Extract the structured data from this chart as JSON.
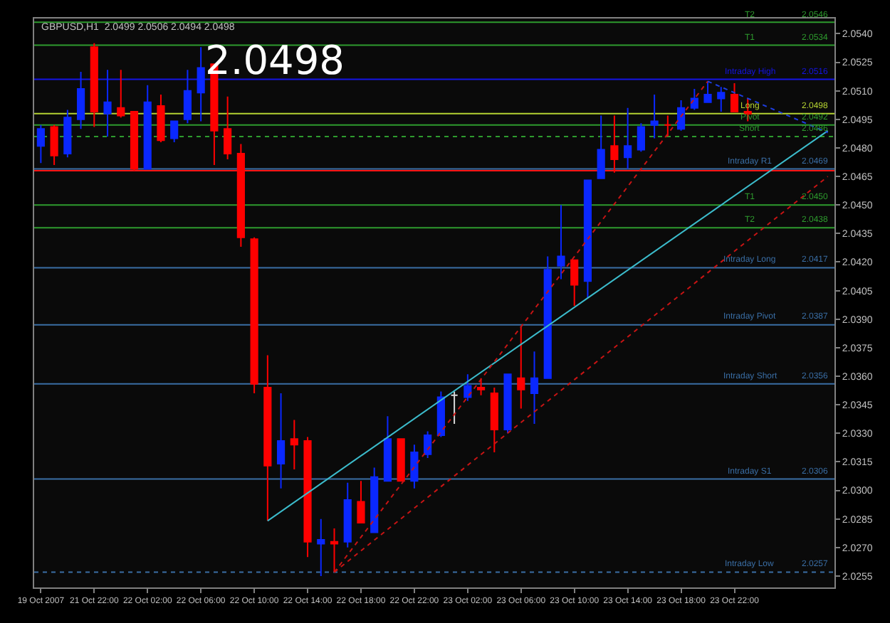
{
  "chart_data": {
    "type": "candlestick",
    "title": "GBPUSD,H1  2.0499 2.0506 2.0494 2.0498",
    "annotations": [
      "2.0498"
    ],
    "categories": [
      "19 Oct 2007",
      null,
      null,
      null,
      "21 Oct 22:00",
      null,
      null,
      null,
      "22 Oct 02:00",
      null,
      null,
      null,
      "22 Oct 06:00",
      null,
      null,
      null,
      "22 Oct 10:00",
      null,
      null,
      null,
      "22 Oct 14:00",
      null,
      null,
      null,
      "22 Oct 18:00",
      null,
      null,
      null,
      "22 Oct 22:00",
      null,
      null,
      null,
      "23 Oct 02:00",
      null,
      null,
      null,
      "23 Oct 06:00",
      null,
      null,
      null,
      "23 Oct 10:00",
      null,
      null,
      null,
      "23 Oct 14:00",
      null,
      null,
      null,
      "23 Oct 18:00",
      null,
      null,
      null,
      "23 Oct 22:00",
      null,
      null,
      null,
      null,
      null,
      null,
      null
    ],
    "ohlc": [
      [
        2.0481,
        2.0492,
        2.0472,
        2.049
      ],
      [
        2.0491,
        2.0492,
        2.0471,
        2.0476
      ],
      [
        2.0477,
        2.05,
        2.0475,
        2.0496
      ],
      [
        2.0495,
        2.052,
        2.049,
        2.0511
      ],
      [
        2.0533,
        2.0535,
        2.0491,
        2.0499
      ],
      [
        2.0498,
        2.0521,
        2.0486,
        2.0504
      ],
      [
        2.0501,
        2.0521,
        2.0496,
        2.0497
      ],
      [
        2.0499,
        2.0499,
        2.0468,
        2.0469
      ],
      [
        2.0469,
        2.0513,
        2.0469,
        2.0504
      ],
      [
        2.0502,
        2.0508,
        2.0483,
        2.0484
      ],
      [
        2.0485,
        2.0494,
        2.0483,
        2.0494
      ],
      [
        2.0495,
        2.0521,
        2.0493,
        2.051
      ],
      [
        2.0509,
        2.0533,
        2.0494,
        2.0522
      ],
      [
        2.0524,
        2.0524,
        2.0471,
        2.0489
      ],
      [
        2.049,
        2.0507,
        2.0474,
        2.0477
      ],
      [
        2.0477,
        2.0482,
        2.0428,
        2.0433
      ],
      [
        2.0432,
        2.0433,
        2.0351,
        2.0356
      ],
      [
        2.0354,
        2.0371,
        2.0284,
        2.0313
      ],
      [
        2.0314,
        2.0351,
        2.0301,
        2.0326
      ],
      [
        2.0327,
        2.0337,
        2.0311,
        2.0324
      ],
      [
        2.0326,
        2.0328,
        2.0265,
        2.0273
      ],
      [
        2.0272,
        2.0285,
        2.0255,
        2.0274
      ],
      [
        2.0273,
        2.028,
        2.0257,
        2.0272
      ],
      [
        2.0273,
        2.0304,
        2.027,
        2.0295
      ],
      [
        2.0294,
        2.0305,
        2.0283,
        2.0283
      ],
      [
        2.0278,
        2.0312,
        2.0278,
        2.0307
      ],
      [
        2.0305,
        2.0339,
        2.0305,
        2.0327
      ],
      [
        2.0327,
        2.0327,
        2.0305,
        2.0305
      ],
      [
        2.0305,
        2.0324,
        2.0301,
        2.032
      ],
      [
        2.0319,
        2.0331,
        2.0317,
        2.0329
      ],
      [
        2.0329,
        2.0352,
        2.0328,
        2.0349
      ],
      [
        2.035,
        2.0352,
        2.0335,
        2.035
      ],
      [
        2.0349,
        2.0361,
        2.0347,
        2.0355
      ],
      [
        2.0354,
        2.0359,
        2.035,
        2.0353
      ],
      [
        2.0351,
        2.0354,
        2.032,
        2.0332
      ],
      [
        2.0332,
        2.0361,
        2.033,
        2.0361
      ],
      [
        2.0359,
        2.0386,
        2.0343,
        2.0353
      ],
      [
        2.0351,
        2.0373,
        2.0335,
        2.0359
      ],
      [
        2.0359,
        2.0423,
        2.0359,
        2.0416
      ],
      [
        2.0418,
        2.045,
        2.0411,
        2.0423
      ],
      [
        2.0421,
        2.0421,
        2.0397,
        2.0408
      ],
      [
        2.041,
        2.0463,
        2.0401,
        2.0463
      ],
      [
        2.0464,
        2.0497,
        2.0464,
        2.0479
      ],
      [
        2.0481,
        2.0497,
        2.0467,
        2.0474
      ],
      [
        2.0475,
        2.0501,
        2.0469,
        2.0481
      ],
      [
        2.0479,
        2.0493,
        2.0478,
        2.0491
      ],
      [
        2.0492,
        2.0508,
        2.0485,
        2.0494
      ],
      [
        2.0492,
        2.0497,
        2.0486,
        2.0492
      ],
      [
        2.049,
        2.0505,
        2.0489,
        2.0501
      ],
      [
        2.0501,
        2.0511,
        2.05,
        2.0506
      ],
      [
        2.0504,
        2.0515,
        2.0504,
        2.0508
      ],
      [
        2.0506,
        2.0512,
        2.0499,
        2.0509
      ],
      [
        2.0508,
        2.0514,
        2.0499,
        2.0499
      ],
      [
        2.0499,
        2.0506,
        2.0494,
        2.0498
      ],
      null,
      null,
      null,
      null,
      null,
      null
    ],
    "colors": [
      "#0a28ff",
      "#ff0000",
      "#0a28ff",
      "#0a28ff",
      "#ff0000",
      "#0a28ff",
      "#ff0000",
      "#ff0000",
      "#0a28ff",
      "#ff0000",
      "#0a28ff",
      "#0a28ff",
      "#0a28ff",
      "#ff0000",
      "#ff0000",
      "#ff0000",
      "#ff0000",
      "#ff0000",
      "#0a28ff",
      "#ff0000",
      "#ff0000",
      "#0a28ff",
      "#ff0000",
      "#0a28ff",
      "#ff0000",
      "#0a28ff",
      "#0a28ff",
      "#ff0000",
      "#0a28ff",
      "#0a28ff",
      "#0a28ff",
      "#d8d8d8",
      "#0a28ff",
      "#ff0000",
      "#ff0000",
      "#0a28ff",
      "#ff0000",
      "#0a28ff",
      "#0a28ff",
      "#0a28ff",
      "#ff0000",
      "#0a28ff",
      "#0a28ff",
      "#ff0000",
      "#0a28ff",
      "#0a28ff",
      "#0a28ff",
      "#ff0000",
      "#0a28ff",
      "#0a28ff",
      "#0a28ff",
      "#0a28ff",
      "#ff0000",
      "#ff0000",
      null,
      null,
      null,
      null,
      null,
      null
    ],
    "series": [
      {
        "type": "line",
        "color": "#3cbccc",
        "line_style": "solid",
        "values": [
          null,
          null,
          null,
          null,
          null,
          null,
          null,
          null,
          null,
          null,
          null,
          null,
          null,
          null,
          null,
          null,
          null,
          2.0284,
          null,
          null,
          null,
          null,
          null,
          null,
          null,
          null,
          null,
          null,
          null,
          null,
          null,
          null,
          null,
          null,
          null,
          null,
          null,
          null,
          null,
          null,
          null,
          null,
          null,
          null,
          null,
          null,
          null,
          null,
          null,
          null,
          null,
          null,
          null,
          null,
          null,
          null,
          null,
          null,
          null,
          2.0489
        ]
      },
      {
        "type": "line",
        "color": "#c81414",
        "line_style": "dotted",
        "values": [
          null,
          null,
          null,
          null,
          null,
          null,
          null,
          null,
          null,
          null,
          null,
          null,
          null,
          null,
          null,
          null,
          null,
          null,
          null,
          null,
          null,
          null,
          2.0257,
          null,
          null,
          null,
          null,
          null,
          null,
          null,
          null,
          null,
          null,
          null,
          null,
          null,
          null,
          null,
          null,
          null,
          null,
          null,
          null,
          null,
          null,
          null,
          null,
          null,
          null,
          null,
          null,
          null,
          null,
          null,
          null,
          null,
          null,
          null,
          null,
          2.0465
        ]
      },
      {
        "type": "line",
        "color": "#c81414",
        "line_style": "dotted",
        "values": [
          null,
          null,
          null,
          null,
          null,
          null,
          null,
          null,
          null,
          null,
          null,
          null,
          null,
          null,
          null,
          null,
          null,
          null,
          null,
          null,
          null,
          null,
          2.0257,
          null,
          null,
          null,
          null,
          null,
          null,
          null,
          null,
          null,
          null,
          null,
          null,
          null,
          null,
          null,
          null,
          null,
          null,
          null,
          null,
          null,
          null,
          null,
          null,
          null,
          null,
          null,
          2.0515,
          null,
          null,
          null,
          null,
          null,
          null,
          null,
          null,
          null
        ]
      },
      {
        "type": "line",
        "color": "#1e3ee0",
        "line_style": "dotted",
        "values": [
          null,
          null,
          null,
          null,
          null,
          null,
          null,
          null,
          null,
          null,
          null,
          null,
          null,
          null,
          null,
          null,
          null,
          null,
          null,
          null,
          null,
          null,
          null,
          null,
          null,
          null,
          null,
          null,
          null,
          null,
          null,
          null,
          null,
          null,
          null,
          null,
          null,
          null,
          null,
          null,
          null,
          null,
          null,
          null,
          null,
          null,
          null,
          null,
          null,
          null,
          2.0515,
          null,
          null,
          null,
          null,
          null,
          null,
          null,
          null,
          2.0488
        ]
      }
    ],
    "ylim": [
      2.0249,
      2.0548
    ],
    "yticks": [
      {
        "value": 2.054,
        "label": "2.0540"
      },
      2.0525,
      {
        "value": 2.051,
        "label": "2.0510"
      },
      2.0495,
      {
        "value": 2.048,
        "label": "2.0480"
      },
      2.0465,
      {
        "value": 2.045,
        "label": "2.0450"
      },
      2.0435,
      {
        "value": 2.042,
        "label": "2.0420"
      },
      2.0405,
      {
        "value": 2.039,
        "label": "2.0390"
      },
      2.0375,
      {
        "value": 2.036,
        "label": "2.0360"
      },
      2.0345,
      {
        "value": 2.033,
        "label": "2.0330"
      },
      2.0315,
      {
        "value": 2.03,
        "label": "2.0300"
      },
      2.0285,
      {
        "value": 2.027,
        "label": "2.0270"
      },
      2.0255
    ],
    "ref_lines": [
      {
        "axis": "y",
        "value": 2.0546,
        "label": "T2 2.0546",
        "color": "#2e9b2e"
      },
      {
        "axis": "y",
        "value": 2.0534,
        "label": "T1 2.0534",
        "color": "#2e9b2e"
      },
      {
        "axis": "y",
        "value": 2.0516,
        "label": "Intraday High 2.0516",
        "color": "#1414e6"
      },
      {
        "axis": "y",
        "value": 2.0498,
        "label": "Long 2.0498",
        "color": "#b4d232"
      },
      {
        "axis": "y",
        "value": 2.0492,
        "label": "Pivot 2.0492",
        "color": "#2e9b2e"
      },
      {
        "axis": "y",
        "value": 2.0486,
        "label": "Short 2.0486",
        "color": "#2e9b2e",
        "line_style": "dotted"
      },
      {
        "axis": "y",
        "value": 2.0469,
        "label": "Intraday R1 2.0469",
        "color": "#3a6ea5"
      },
      {
        "axis": "y",
        "value": 2.0468,
        "color": "#ff1414"
      },
      {
        "axis": "y",
        "value": 2.045,
        "label": "T1 2.0450",
        "color": "#2e9b2e"
      },
      {
        "axis": "y",
        "value": 2.0438,
        "label": "T2 2.0438",
        "color": "#2e9b2e"
      },
      {
        "axis": "y",
        "value": 2.0417,
        "label": "Intraday Long 2.0417",
        "color": "#3a6ea5"
      },
      {
        "axis": "y",
        "value": 2.0387,
        "label": "Intraday Pivot 2.0387",
        "color": "#3a6ea5"
      },
      {
        "axis": "y",
        "value": 2.0356,
        "label": "Intraday Short 2.0356",
        "color": "#3a6ea5"
      },
      {
        "axis": "y",
        "value": 2.0306,
        "label": "Intraday S1 2.0306",
        "color": "#3a6ea5"
      },
      {
        "axis": "y",
        "value": 2.0257,
        "label": "Intraday Low 2.0257",
        "color": "#3a6ea5",
        "line_style": "dotted"
      }
    ]
  }
}
